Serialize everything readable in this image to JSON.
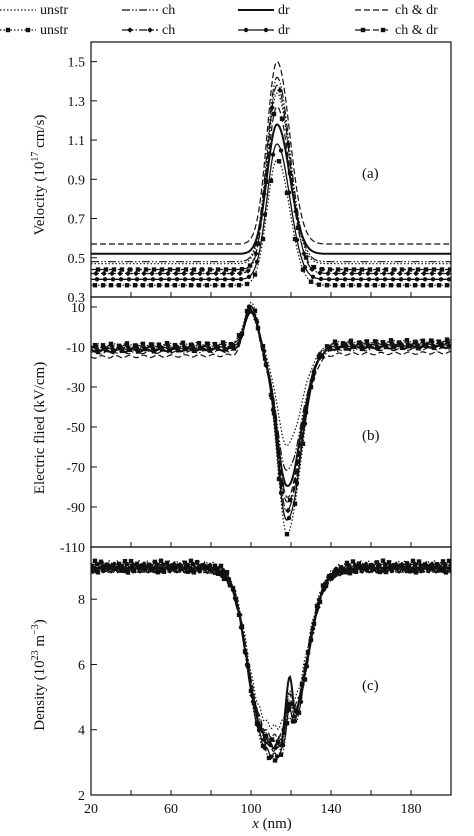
{
  "legend": [
    {
      "label": "unstr",
      "style": "dotted",
      "marker": "none"
    },
    {
      "label": "ch",
      "style": "dashdotdot",
      "marker": "none"
    },
    {
      "label": "dr",
      "style": "solid-thick",
      "marker": "none"
    },
    {
      "label": "ch & dr",
      "style": "dashed",
      "marker": "none"
    },
    {
      "label": "unstr",
      "style": "dotted",
      "marker": "square"
    },
    {
      "label": "ch",
      "style": "dashdotdot",
      "marker": "diamond"
    },
    {
      "label": "dr",
      "style": "solid",
      "marker": "circle"
    },
    {
      "label": "ch & dr",
      "style": "dashed",
      "marker": "square"
    }
  ],
  "chart_data": [
    {
      "type": "line",
      "tag": "(a)",
      "ylabel": "Velocity (10",
      "ylabel_sup": "17",
      "ylabel_unit": " cm/s)",
      "xlim": [
        20,
        200
      ],
      "ylim": [
        0.3,
        1.6
      ],
      "yticks": [
        "0.3",
        "0.5",
        "0.7",
        "0.9",
        "1.1",
        "1.3",
        "1.5"
      ],
      "series": [
        {
          "base": 0.47,
          "peak": 1.34,
          "style": "dotted",
          "marker": "none"
        },
        {
          "base": 0.48,
          "peak": 1.42,
          "style": "dashdotdot",
          "marker": "none"
        },
        {
          "base": 0.52,
          "peak": 1.18,
          "style": "solid-thick",
          "marker": "none"
        },
        {
          "base": 0.57,
          "peak": 1.5,
          "style": "dashed",
          "marker": "none"
        },
        {
          "base": 0.36,
          "peak": 1.0,
          "style": "dotted",
          "marker": "square"
        },
        {
          "base": 0.42,
          "peak": 1.38,
          "style": "dashdotdot",
          "marker": "diamond"
        },
        {
          "base": 0.39,
          "peak": 1.08,
          "style": "solid",
          "marker": "circle"
        },
        {
          "base": 0.44,
          "peak": 1.27,
          "style": "dashed",
          "marker": "square"
        }
      ]
    },
    {
      "type": "line",
      "tag": "(b)",
      "ylabel": "Electric flied (kV/cm)",
      "xlim": [
        20,
        200
      ],
      "ylim": [
        -110,
        15
      ],
      "yticks": [
        "10",
        "-10",
        "-30",
        "-50",
        "-70",
        "-90",
        "-110"
      ],
      "series": [
        {
          "base": -11,
          "peak": 8,
          "trough": -59,
          "style": "dotted",
          "marker": "none"
        },
        {
          "base": -13,
          "peak": 9,
          "trough": -72,
          "style": "dashdotdot",
          "marker": "none"
        },
        {
          "base": -12,
          "peak": 8,
          "trough": -80,
          "style": "solid-thick",
          "marker": "none"
        },
        {
          "base": -15,
          "peak": 10,
          "trough": -85,
          "style": "dashed",
          "marker": "none"
        },
        {
          "base": -9,
          "peak": 12,
          "trough": -103,
          "style": "dotted",
          "marker": "square"
        },
        {
          "base": -10,
          "peak": 10,
          "trough": -92,
          "style": "dashdotdot",
          "marker": "diamond"
        },
        {
          "base": -11,
          "peak": 11,
          "trough": -97,
          "style": "solid",
          "marker": "circle"
        },
        {
          "base": -12,
          "peak": 9,
          "trough": -88,
          "style": "dashed",
          "marker": "square"
        }
      ]
    },
    {
      "type": "line",
      "tag": "(c)",
      "ylabel": "Density (10",
      "ylabel_sup": "23",
      "ylabel_unit": " m",
      "ylabel_sup2": "−3",
      "ylabel_end": ")",
      "xlabel": "x",
      "xlabel_unit": " (nm)",
      "xlim": [
        20,
        200
      ],
      "ylim": [
        2,
        9.6
      ],
      "yticks": [
        "2",
        "4",
        "6",
        "8"
      ],
      "xticks": [
        "20",
        "60",
        "100",
        "140",
        "180"
      ],
      "series": [
        {
          "base": 9.0,
          "trough": 3.9,
          "bump": 4.6,
          "style": "dotted",
          "marker": "none"
        },
        {
          "base": 9.0,
          "trough": 3.5,
          "bump": 4.4,
          "style": "dashdotdot",
          "marker": "none"
        },
        {
          "base": 8.9,
          "trough": 3.3,
          "bump": 5.1,
          "style": "solid-thick",
          "marker": "none"
        },
        {
          "base": 8.9,
          "trough": 3.6,
          "bump": 4.5,
          "style": "dashed",
          "marker": "none"
        },
        {
          "base": 9.1,
          "trough": 2.9,
          "bump": 3.8,
          "style": "dotted",
          "marker": "square"
        },
        {
          "base": 9.0,
          "trough": 3.2,
          "bump": 4.2,
          "style": "dashdotdot",
          "marker": "diamond"
        },
        {
          "base": 9.0,
          "trough": 3.0,
          "bump": 4.0,
          "style": "solid",
          "marker": "circle"
        },
        {
          "base": 8.9,
          "trough": 3.4,
          "bump": 4.3,
          "style": "dashed",
          "marker": "square"
        }
      ]
    }
  ]
}
